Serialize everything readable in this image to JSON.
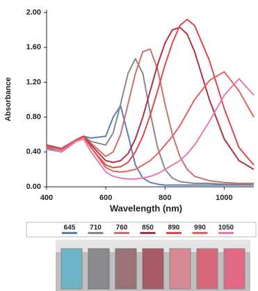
{
  "chart_data": {
    "type": "line",
    "x_label": "Wavelength (nm)",
    "y_label": "Absorbance",
    "x": [
      400,
      450,
      500,
      525,
      550,
      600,
      625,
      650,
      675,
      700,
      725,
      750,
      775,
      800,
      825,
      850,
      875,
      900,
      950,
      1000,
      1050,
      1100
    ],
    "series": [
      {
        "name": "645",
        "color": "#5b7fb3",
        "values": [
          0.45,
          0.4,
          0.52,
          0.58,
          0.56,
          0.58,
          0.8,
          0.93,
          0.6,
          0.25,
          0.1,
          0.05,
          0.03,
          0.02,
          0.02,
          0.02,
          0.02,
          0.02,
          0.02,
          0.02,
          0.02,
          0.02
        ]
      },
      {
        "name": "710",
        "color": "#888888",
        "values": [
          0.47,
          0.42,
          0.53,
          0.58,
          0.52,
          0.48,
          0.62,
          0.95,
          1.3,
          1.47,
          1.3,
          0.85,
          0.45,
          0.2,
          0.1,
          0.06,
          0.05,
          0.04,
          0.04,
          0.03,
          0.03,
          0.03
        ]
      },
      {
        "name": "760",
        "color": "#c87070",
        "values": [
          0.48,
          0.43,
          0.54,
          0.58,
          0.5,
          0.35,
          0.4,
          0.6,
          0.95,
          1.3,
          1.55,
          1.58,
          1.35,
          0.95,
          0.6,
          0.35,
          0.2,
          0.12,
          0.07,
          0.05,
          0.04,
          0.04
        ]
      },
      {
        "name": "850",
        "color": "#b03040",
        "values": [
          0.48,
          0.44,
          0.54,
          0.58,
          0.48,
          0.3,
          0.28,
          0.3,
          0.38,
          0.55,
          0.8,
          1.1,
          1.4,
          1.65,
          1.8,
          1.83,
          1.75,
          1.55,
          1.0,
          0.55,
          0.3,
          0.2
        ]
      },
      {
        "name": "890",
        "color": "#e04848",
        "values": [
          0.47,
          0.43,
          0.54,
          0.57,
          0.45,
          0.25,
          0.22,
          0.23,
          0.28,
          0.4,
          0.58,
          0.82,
          1.1,
          1.4,
          1.65,
          1.85,
          1.92,
          1.85,
          1.45,
          0.9,
          0.45,
          0.25
        ]
      },
      {
        "name": "990",
        "color": "#e8605a",
        "values": [
          0.46,
          0.43,
          0.53,
          0.57,
          0.45,
          0.22,
          0.18,
          0.17,
          0.18,
          0.2,
          0.25,
          0.3,
          0.38,
          0.48,
          0.58,
          0.7,
          0.85,
          1.0,
          1.22,
          1.32,
          1.1,
          0.8
        ]
      },
      {
        "name": "1050",
        "color": "#e878b0",
        "values": [
          0.43,
          0.4,
          0.52,
          0.55,
          0.4,
          0.17,
          0.12,
          0.1,
          0.09,
          0.09,
          0.1,
          0.12,
          0.15,
          0.2,
          0.25,
          0.3,
          0.38,
          0.48,
          0.75,
          1.05,
          1.24,
          1.05
        ]
      }
    ],
    "xlim": [
      400,
      1100
    ],
    "xticks": [
      400,
      600,
      800,
      1000
    ],
    "ylim": [
      0,
      2
    ],
    "yticks": [
      {
        "value": 0,
        "label": "0.00"
      },
      {
        "value": 0.4,
        "label": "0.40"
      },
      {
        "value": 0.8,
        "label": "0.80"
      },
      {
        "value": 1.2,
        "label": "1.20"
      },
      {
        "value": 1.6,
        "label": "1.60"
      },
      {
        "value": 2,
        "label": "2.00"
      }
    ],
    "grid": false,
    "legend": "bottom"
  }
}
